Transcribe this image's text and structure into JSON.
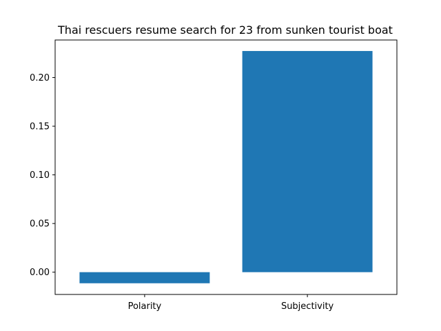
{
  "chart_data": {
    "type": "bar",
    "title": "Thai rescuers resume search for 23 from sunken tourist boat",
    "xlabel": "",
    "ylabel": "",
    "categories": [
      "Polarity",
      "Subjectivity"
    ],
    "values": [
      -0.0114,
      0.2273
    ],
    "ylim": [
      -0.0229,
      0.2386
    ],
    "yticks": [
      0.0,
      0.05,
      0.1,
      0.15,
      0.2
    ],
    "ytick_labels": [
      "0.00",
      "0.05",
      "0.10",
      "0.15",
      "0.20"
    ],
    "bar_color": "#1f77b4",
    "grid": false,
    "legend": "none"
  }
}
